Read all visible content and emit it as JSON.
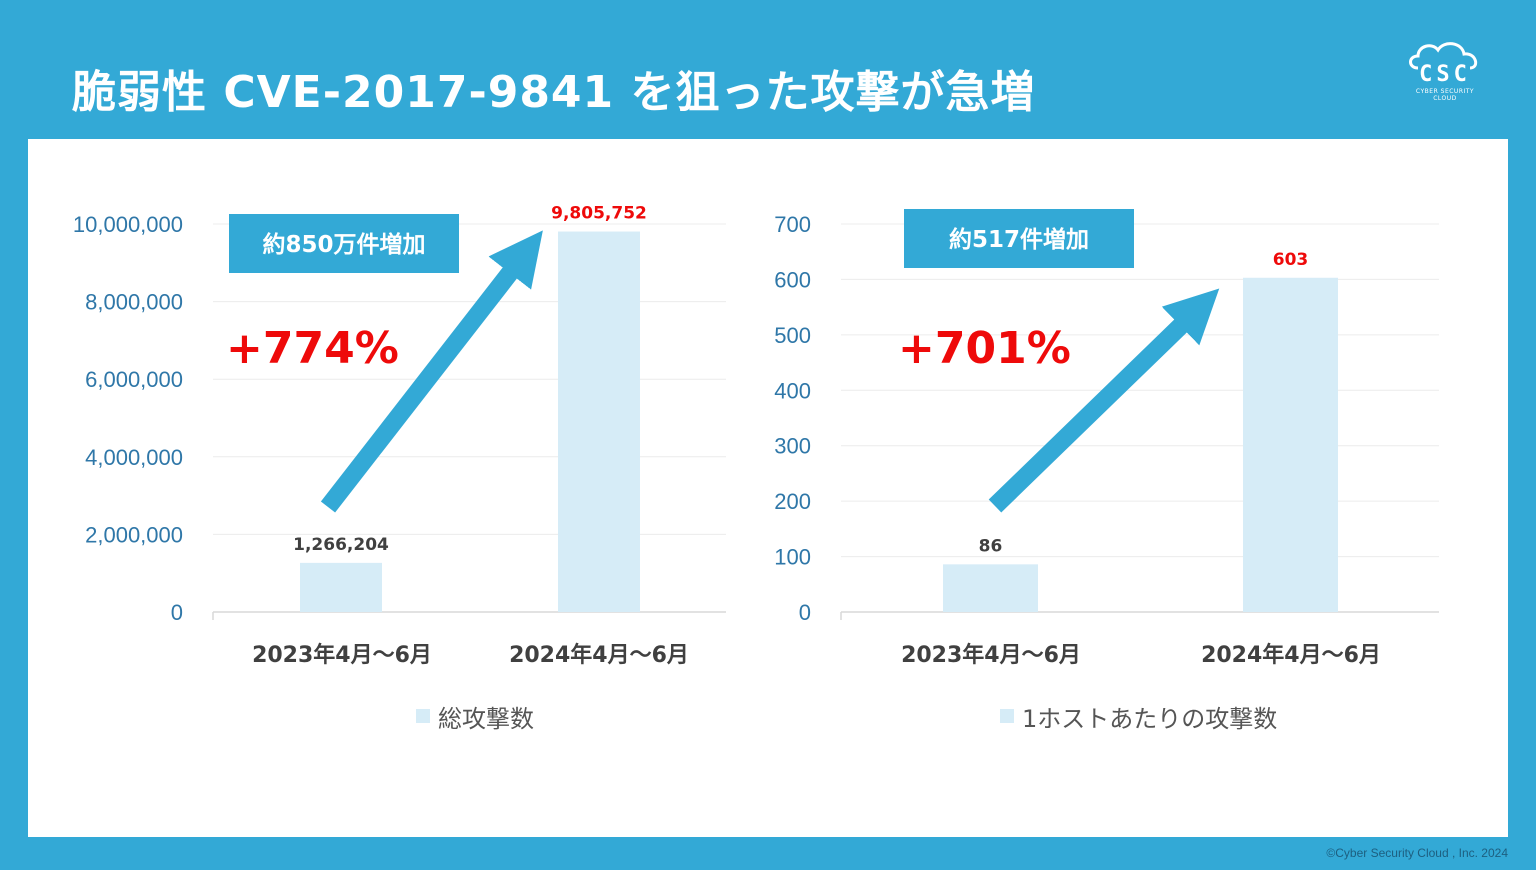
{
  "title": "脆弱性 CVE-2017-9841 を狙った攻撃が急増",
  "logo": {
    "text": "CSC",
    "subtext": "CYBER SECURITY CLOUD",
    "icon": "cloud-icon"
  },
  "copyright": "©Cyber Security Cloud , Inc. 2024",
  "colors": {
    "background": "#33a9d6",
    "bar": "#d6ecf7",
    "arrow": "#33a9d6",
    "highlight": "#ee0a0a"
  },
  "chart_data": [
    {
      "type": "bar",
      "categories": [
        "2023年4月～6月",
        "2024年4月～6月"
      ],
      "series": [
        {
          "name": "総攻撃数",
          "values": [
            1266204,
            9805752
          ]
        }
      ],
      "data_labels": [
        "1,266,204",
        "9,805,752"
      ],
      "ylim": [
        0,
        10000000
      ],
      "yticks": [
        "0",
        "2,000,000",
        "4,000,000",
        "6,000,000",
        "8,000,000",
        "10,000,000"
      ],
      "grid": true,
      "legend_position": "bottom",
      "callout": "約850万件増加",
      "increase": "+774%"
    },
    {
      "type": "bar",
      "categories": [
        "2023年4月～6月",
        "2024年4月～6月"
      ],
      "series": [
        {
          "name": "1ホストあたりの攻撃数",
          "values": [
            86,
            603
          ]
        }
      ],
      "data_labels": [
        "86",
        "603"
      ],
      "ylim": [
        0,
        700
      ],
      "yticks": [
        "0",
        "100",
        "200",
        "300",
        "400",
        "500",
        "600",
        "700"
      ],
      "grid": true,
      "legend_position": "bottom",
      "callout": "約517件増加",
      "increase": "+701%"
    }
  ]
}
